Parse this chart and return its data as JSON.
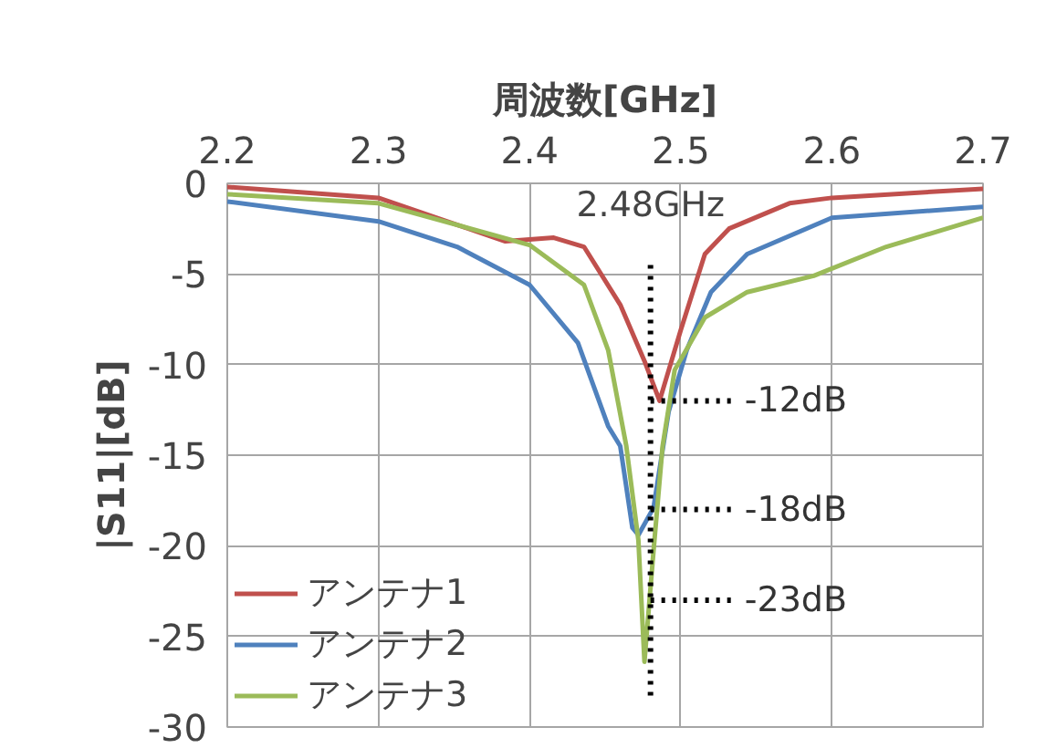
{
  "chart_data": {
    "type": "line",
    "xlabel": "周波数[GHz]",
    "ylabel": "|S11|[dB]",
    "xlim": [
      2.2,
      2.7
    ],
    "xticks": [
      2.2,
      2.3,
      2.4,
      2.5,
      2.6,
      2.7
    ],
    "ylim": [
      -30,
      0
    ],
    "yticks": [
      -30,
      -25,
      -20,
      -15,
      -10,
      -5,
      0
    ],
    "grid": true,
    "legend": "bottom left",
    "line_style": "solid",
    "marker": "none",
    "series": [
      {
        "name": "アンテナ1",
        "color": "#c0504d",
        "x": [
          2.2,
          2.3,
          2.384,
          2.4,
          2.416,
          2.436,
          2.46,
          2.476,
          2.486,
          2.5,
          2.516,
          2.532,
          2.572,
          2.6,
          2.7
        ],
        "values": [
          -0.2,
          -0.8,
          -3.2,
          -3.1,
          -3.0,
          -3.5,
          -6.7,
          -9.8,
          -12,
          -8.1,
          -3.9,
          -2.5,
          -1.1,
          -0.8,
          -0.3
        ]
      },
      {
        "name": "アンテナ2",
        "color": "#4f81bd",
        "x": [
          2.2,
          2.3,
          2.352,
          2.4,
          2.432,
          2.452,
          2.46,
          2.468,
          2.472,
          2.482,
          2.492,
          2.504,
          2.52,
          2.544,
          2.6,
          2.7
        ],
        "values": [
          -1.0,
          -2.1,
          -3.5,
          -5.6,
          -8.8,
          -13.4,
          -14.5,
          -19.0,
          -19.4,
          -17.9,
          -12.6,
          -9.2,
          -6.0,
          -3.9,
          -1.9,
          -1.3
        ]
      },
      {
        "name": "アンテナ3",
        "color": "#9bbb59",
        "x": [
          2.2,
          2.3,
          2.4,
          2.436,
          2.452,
          2.464,
          2.472,
          2.476,
          2.482,
          2.488,
          2.496,
          2.516,
          2.544,
          2.588,
          2.636,
          2.7
        ],
        "values": [
          -0.6,
          -1.1,
          -3.4,
          -5.6,
          -9.2,
          -14.5,
          -19.7,
          -26.4,
          -20.3,
          -14.5,
          -10.3,
          -7.4,
          -6.0,
          -5.1,
          -3.5,
          -1.9
        ]
      }
    ],
    "ref_lines": [
      {
        "axis": "x",
        "value": 2.48,
        "label": "2.48GHz",
        "color": "#000000",
        "line_style": "dotted"
      },
      {
        "axis": "y",
        "value": -12,
        "label": "-12dB",
        "color": "#000000",
        "line_style": "dotted"
      },
      {
        "axis": "y",
        "value": -18,
        "label": "-18dB",
        "color": "#000000",
        "line_style": "dotted"
      },
      {
        "axis": "y",
        "value": -23,
        "label": "-23dB",
        "color": "#000000",
        "line_style": "dotted"
      }
    ]
  }
}
